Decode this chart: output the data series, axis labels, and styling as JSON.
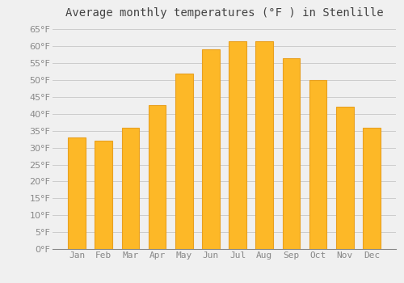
{
  "title": "Average monthly temperatures (°F ) in Stenlille",
  "months": [
    "Jan",
    "Feb",
    "Mar",
    "Apr",
    "May",
    "Jun",
    "Jul",
    "Aug",
    "Sep",
    "Oct",
    "Nov",
    "Dec"
  ],
  "values": [
    33,
    32,
    36,
    42.5,
    52,
    59,
    61.5,
    61.5,
    56.5,
    50,
    42,
    36
  ],
  "bar_color": "#FDB827",
  "bar_edge_color": "#E8A020",
  "background_color": "#F0F0F0",
  "ylim": [
    0,
    67
  ],
  "yticks": [
    0,
    5,
    10,
    15,
    20,
    25,
    30,
    35,
    40,
    45,
    50,
    55,
    60,
    65
  ],
  "title_fontsize": 10,
  "tick_fontsize": 8,
  "grid_color": "#CCCCCC"
}
